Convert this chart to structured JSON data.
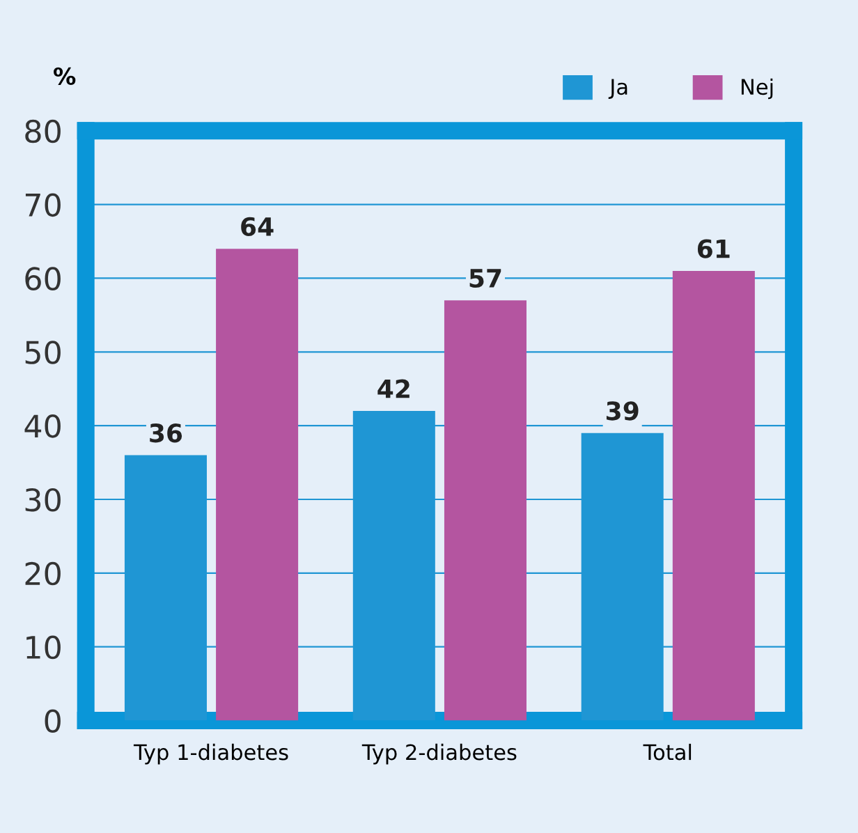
{
  "chart_data": {
    "type": "bar",
    "ylabel": "%",
    "categories": [
      "Typ 1-diabetes",
      "Typ 2-diabetes",
      "Total"
    ],
    "series": [
      {
        "name": "Ja",
        "color": "#1f96d4",
        "values": [
          36,
          42,
          39
        ]
      },
      {
        "name": "Nej",
        "color": "#b455a0",
        "values": [
          64,
          57,
          61
        ]
      }
    ],
    "ylim": [
      0,
      80
    ],
    "yticks": [
      0,
      10,
      20,
      30,
      40,
      50,
      60,
      70,
      80
    ],
    "grid": "y",
    "legend": "top right",
    "data_labels": true
  }
}
